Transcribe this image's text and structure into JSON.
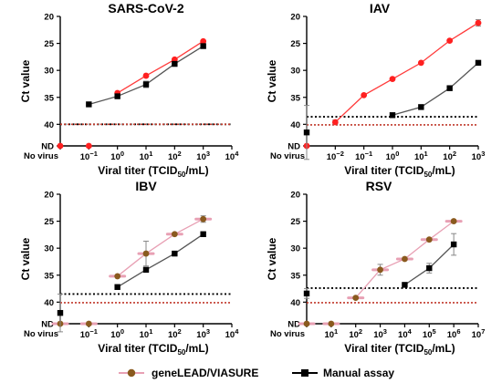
{
  "figure": {
    "background": "#ffffff"
  },
  "colors": {
    "axis": "#000000",
    "threshold_manual": "#000000",
    "threshold_gene": "#c0392b",
    "error_bar": "#888888"
  },
  "legend": [
    {
      "label": "geneLEAD/VIASURE",
      "marker": "circle",
      "line_color": "#e8a0b4",
      "marker_color": "#8a5a1e"
    },
    {
      "label": "Manual assay",
      "marker": "square",
      "line_color": "#000000",
      "marker_color": "#000000"
    }
  ],
  "chart_data": [
    {
      "type": "line",
      "title": "SARS-CoV-2",
      "xlabel": "Viral titer (TCID50/mL)",
      "ylabel": "Ct value",
      "y_axis": {
        "range": [
          20,
          44
        ],
        "reversed": true,
        "ticks": [
          "20",
          "25",
          "30",
          "35",
          "40",
          "ND"
        ],
        "nd_value": 44
      },
      "x_axis": {
        "scale": "log10",
        "ticks": [
          "No virus",
          "10−1",
          "100",
          "101",
          "102",
          "103",
          "104"
        ],
        "tick_exponents": [
          null,
          -1,
          0,
          1,
          2,
          3,
          4
        ],
        "no_virus_slot": -2
      },
      "thresholds": [
        {
          "series": "Manual assay",
          "y": 40
        },
        {
          "series": "geneLEAD/VIASURE",
          "y": 40
        }
      ],
      "series": [
        {
          "name": "geneLEAD/VIASURE",
          "line_color": "#ff3b3b",
          "marker_color": "#ff2020",
          "marker": "circle",
          "points": [
            {
              "x": "No virus",
              "y": "ND"
            },
            {
              "x": -1,
              "y": "ND"
            },
            {
              "x": 0,
              "y": 34.2
            },
            {
              "x": 1,
              "y": 31.0
            },
            {
              "x": 2,
              "y": 28.0
            },
            {
              "x": 3,
              "y": 24.6
            }
          ]
        },
        {
          "name": "Manual assay",
          "line_color": "#555555",
          "marker_color": "#000000",
          "marker": "square",
          "points": [
            {
              "x": -1,
              "y": 36.3
            },
            {
              "x": 0,
              "y": 34.8
            },
            {
              "x": 1,
              "y": 32.6,
              "err": 0.6
            },
            {
              "x": 2,
              "y": 28.8
            },
            {
              "x": 3,
              "y": 25.5
            }
          ]
        }
      ]
    },
    {
      "type": "line",
      "title": "IAV",
      "xlabel": "Viral titer (TCID50/mL)",
      "ylabel": "Ct value",
      "y_axis": {
        "range": [
          20,
          44
        ],
        "reversed": true,
        "ticks": [
          "20",
          "25",
          "30",
          "35",
          "40",
          "ND"
        ],
        "nd_value": 44
      },
      "x_axis": {
        "scale": "log10",
        "ticks": [
          "No virus",
          "10−2",
          "10−1",
          "100",
          "101",
          "102",
          "103"
        ],
        "tick_exponents": [
          null,
          -2,
          -1,
          0,
          1,
          2,
          3
        ],
        "no_virus_slot": -3
      },
      "thresholds": [
        {
          "series": "Manual assay",
          "y": 38.6
        },
        {
          "series": "geneLEAD/VIASURE",
          "y": 40.1
        }
      ],
      "series": [
        {
          "name": "geneLEAD/VIASURE",
          "line_color": "#ff3b3b",
          "marker_color": "#ff2020",
          "marker": "circle",
          "points": [
            {
              "x": "No virus",
              "y": "ND"
            },
            {
              "x": -2,
              "y": 39.6,
              "err": 0.4
            },
            {
              "x": -1,
              "y": 34.6
            },
            {
              "x": 0,
              "y": 31.6
            },
            {
              "x": 1,
              "y": 28.6
            },
            {
              "x": 2,
              "y": 24.5
            },
            {
              "x": 3,
              "y": 21.2,
              "err": 0.6
            }
          ]
        },
        {
          "name": "Manual assay",
          "line_color": "#555555",
          "marker_color": "#000000",
          "marker": "square",
          "points": [
            {
              "x": "No virus",
              "y": 41.5,
              "err": 5.0
            },
            {
              "x": 0,
              "y": 38.3
            },
            {
              "x": 1,
              "y": 36.8
            },
            {
              "x": 2,
              "y": 33.3
            },
            {
              "x": 3,
              "y": 28.6
            }
          ]
        }
      ]
    },
    {
      "type": "line",
      "title": "IBV",
      "xlabel": "Viral titer (TCID50/mL)",
      "ylabel": "Ct value",
      "y_axis": {
        "range": [
          20,
          44
        ],
        "reversed": true,
        "ticks": [
          "20",
          "25",
          "30",
          "35",
          "40",
          "ND"
        ],
        "nd_value": 44
      },
      "x_axis": {
        "scale": "log10",
        "ticks": [
          "No virus",
          "10−1",
          "100",
          "101",
          "102",
          "103",
          "104"
        ],
        "tick_exponents": [
          null,
          -1,
          0,
          1,
          2,
          3,
          4
        ],
        "no_virus_slot": -2
      },
      "thresholds": [
        {
          "series": "Manual assay",
          "y": 38.5
        },
        {
          "series": "geneLEAD/VIASURE",
          "y": 40.1
        }
      ],
      "series": [
        {
          "name": "geneLEAD/VIASURE",
          "line_color": "#e8a0b4",
          "marker_color": "#8a5a1e",
          "marker": "circle",
          "points": [
            {
              "x": "No virus",
              "y": "ND"
            },
            {
              "x": -1,
              "y": "ND"
            },
            {
              "x": 0,
              "y": 35.2
            },
            {
              "x": 1,
              "y": 31.0,
              "err": 2.3
            },
            {
              "x": 2,
              "y": 27.4
            },
            {
              "x": 3,
              "y": 24.6,
              "err": 0.6
            }
          ]
        },
        {
          "name": "Manual assay",
          "line_color": "#555555",
          "marker_color": "#000000",
          "marker": "square",
          "points": [
            {
              "x": "No virus",
              "y": 42.0,
              "err": 3.5
            },
            {
              "x": 0,
              "y": 37.2
            },
            {
              "x": 1,
              "y": 34.0
            },
            {
              "x": 2,
              "y": 31.0
            },
            {
              "x": 3,
              "y": 27.4
            }
          ]
        }
      ]
    },
    {
      "type": "line",
      "title": "RSV",
      "xlabel": "Viral titer (TCID50/mL)",
      "ylabel": "Ct value",
      "y_axis": {
        "range": [
          20,
          44
        ],
        "reversed": true,
        "ticks": [
          "20",
          "25",
          "30",
          "35",
          "40",
          "ND"
        ],
        "nd_value": 44
      },
      "x_axis": {
        "scale": "log10",
        "ticks": [
          "No virus",
          "101",
          "102",
          "103",
          "104",
          "105",
          "106",
          "107"
        ],
        "tick_exponents": [
          null,
          1,
          2,
          3,
          4,
          5,
          6,
          7
        ],
        "no_virus_slot": 0
      },
      "thresholds": [
        {
          "series": "Manual assay",
          "y": 37.4
        },
        {
          "series": "geneLEAD/VIASURE",
          "y": 40.1
        }
      ],
      "series": [
        {
          "name": "geneLEAD/VIASURE",
          "line_color": "#e8a0b4",
          "marker_color": "#8a5a1e",
          "marker": "circle",
          "points": [
            {
              "x": "No virus",
              "y": "ND"
            },
            {
              "x": 1,
              "y": "ND"
            },
            {
              "x": 2,
              "y": 39.2
            },
            {
              "x": 3,
              "y": 34.0,
              "err": 1.0
            },
            {
              "x": 4,
              "y": 32.0
            },
            {
              "x": 5,
              "y": 28.4
            },
            {
              "x": 6,
              "y": 25.0
            }
          ]
        },
        {
          "name": "Manual assay",
          "line_color": "#555555",
          "marker_color": "#000000",
          "marker": "square",
          "points": [
            {
              "x": "No virus",
              "y": 38.4,
              "err": 0.9
            },
            {
              "x": 4,
              "y": 36.8
            },
            {
              "x": 5,
              "y": 33.7,
              "err": 0.9
            },
            {
              "x": 6,
              "y": 29.3,
              "err": 2.0
            }
          ]
        }
      ]
    }
  ]
}
